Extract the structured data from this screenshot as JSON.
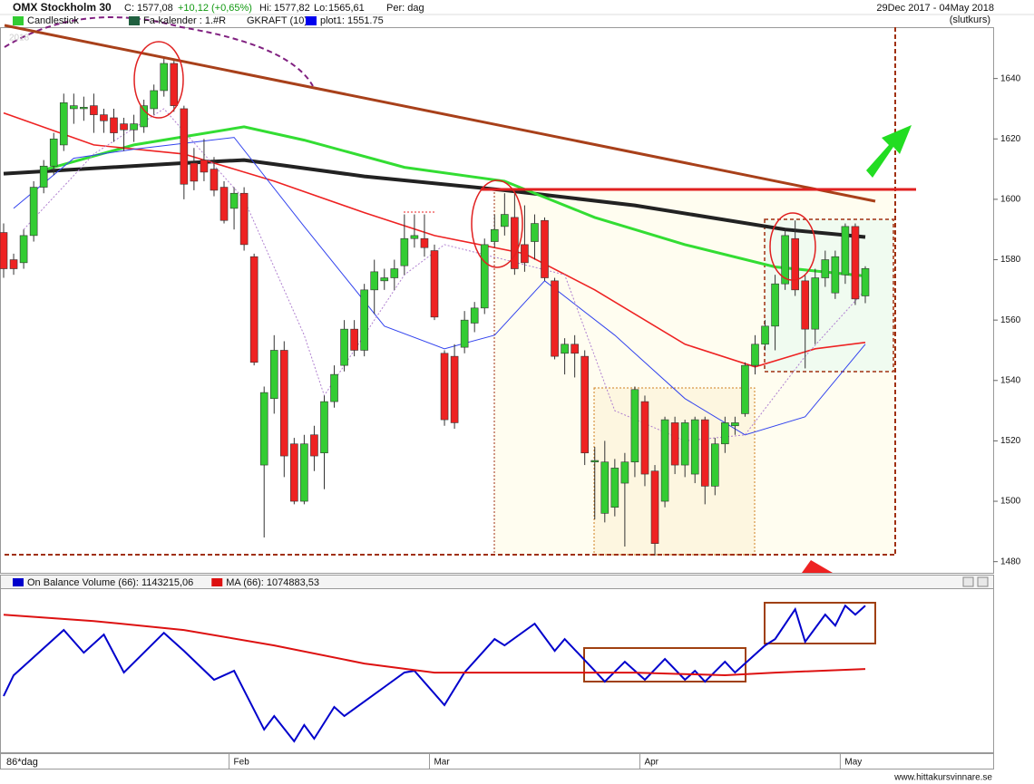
{
  "chart_data": [
    {
      "type": "candlestick",
      "title": "OMX Stockholm 30",
      "quote": [
        "C:",
        "1577,08",
        "+10,12 (+0,65%)",
        "Hi:",
        "1577,82",
        "Lo:",
        "1565,61",
        "Per: dag"
      ],
      "date_range": "29Dec 2017 - 04May 2018",
      "price_basis": "(slutkurs)",
      "year_watermark": "2018",
      "legend": [
        {
          "label": "Candlestick",
          "color": "#33cc33"
        },
        {
          "label": "Fa-kalender : 1.#R",
          "color": "#1f5f3f"
        },
        {
          "label": "GKRAFT (10)",
          "color": null
        },
        {
          "label": "plot1: 1551.75",
          "color": "#0000ee"
        }
      ],
      "period_label": "86*dag",
      "categories": [
        null,
        null,
        null,
        null,
        null,
        null,
        null,
        null,
        null,
        null,
        null,
        null,
        null,
        null,
        null,
        null,
        null,
        null,
        null,
        null,
        null,
        null,
        null,
        "Feb",
        null,
        null,
        null,
        null,
        null,
        null,
        null,
        null,
        null,
        null,
        null,
        null,
        null,
        null,
        null,
        null,
        null,
        null,
        null,
        "Mar",
        null,
        null,
        null,
        null,
        null,
        null,
        null,
        null,
        null,
        null,
        null,
        null,
        null,
        null,
        null,
        null,
        null,
        null,
        null,
        null,
        "Apr",
        null,
        null,
        null,
        null,
        null,
        null,
        null,
        null,
        null,
        null,
        null,
        null,
        null,
        null,
        null,
        null,
        null,
        null,
        null,
        "May",
        null,
        null
      ],
      "open": [
        1589,
        1580,
        1579,
        1588,
        1604,
        1611,
        1618,
        1630,
        1630,
        1631,
        1628,
        1627,
        1625,
        1623,
        1624,
        1630,
        1636,
        1645,
        1630,
        1612,
        1613,
        1610,
        1604,
        1597,
        1602,
        1581,
        1512,
        1534,
        1550,
        1519,
        1500,
        1522,
        1516,
        1533,
        1545,
        1557,
        1550,
        1570,
        1573,
        1574,
        1578,
        1587,
        1587,
        1583,
        1549,
        1548,
        1551,
        1559,
        1564,
        1586,
        1591,
        1594,
        1585,
        1586,
        1593,
        1573,
        1549,
        1552,
        1548,
        1513,
        1496,
        1498,
        1506,
        1513,
        1533,
        1510,
        1500,
        1526,
        1512,
        1509,
        1527,
        1505,
        1519,
        1525,
        1529,
        1545,
        1552,
        1558,
        1572,
        1587,
        1573,
        1557,
        1574,
        1569,
        1575,
        1591,
        1568
      ],
      "high": [
        1592,
        1582,
        1590,
        1606,
        1613,
        1622,
        1635,
        1635,
        1634,
        1635,
        1630,
        1630,
        1627,
        1628,
        1633,
        1638,
        1647,
        1646,
        1631,
        1617,
        1620,
        1614,
        1606,
        1604,
        1604,
        1582,
        1538,
        1555,
        1553,
        1521,
        1522,
        1525,
        1535,
        1545,
        1560,
        1560,
        1572,
        1580,
        1577,
        1580,
        1595,
        1595,
        1595,
        1585,
        1550,
        1552,
        1563,
        1566,
        1587,
        1595,
        1602,
        1602,
        1598,
        1595,
        1594,
        1574,
        1554,
        1555,
        1550,
        1518,
        1520,
        1514,
        1516,
        1538,
        1535,
        1512,
        1528,
        1528,
        1527,
        1528,
        1528,
        1521,
        1528,
        1528,
        1546,
        1555,
        1560,
        1575,
        1590,
        1593,
        1575,
        1577,
        1583,
        1583,
        1592,
        1592,
        1577.82
      ],
      "low": [
        1574,
        1575,
        1577,
        1586,
        1602,
        1608,
        1616,
        1625,
        1626,
        1622,
        1622,
        1619,
        1616,
        1619,
        1622,
        1628,
        1634,
        1629,
        1600,
        1603,
        1606,
        1601,
        1592,
        1590,
        1583,
        1545,
        1488,
        1529,
        1508,
        1499,
        1499,
        1510,
        1504,
        1531,
        1543,
        1548,
        1548,
        1562,
        1570,
        1570,
        1575,
        1584,
        1581,
        1560,
        1525,
        1524,
        1549,
        1556,
        1562,
        1584,
        1588,
        1575,
        1576,
        1580,
        1573,
        1547,
        1542,
        1541,
        1512,
        1494,
        1493,
        1495,
        1485,
        1508,
        1505,
        1482,
        1498,
        1509,
        1508,
        1506,
        1499,
        1502,
        1516,
        1522,
        1528,
        1542,
        1550,
        1550,
        1570,
        1568,
        1544,
        1552,
        1571,
        1567,
        1572,
        1565,
        1565.61
      ],
      "close": [
        1577,
        1577,
        1588,
        1604,
        1611,
        1620,
        1632,
        1631,
        1630.5,
        1628,
        1626,
        1622,
        1623,
        1625,
        1631,
        1636,
        1645,
        1631,
        1605,
        1606,
        1609,
        1603,
        1593,
        1602,
        1585,
        1546,
        1536,
        1550,
        1515,
        1500,
        1519,
        1515,
        1533,
        1542,
        1557,
        1550,
        1570,
        1576,
        1574,
        1577,
        1587,
        1588,
        1584,
        1561,
        1527,
        1526,
        1560,
        1564,
        1585,
        1590,
        1595,
        1577,
        1579,
        1592,
        1574,
        1548,
        1552,
        1549,
        1516,
        1513.5,
        1513,
        1511,
        1513,
        1537,
        1509,
        1486,
        1527,
        1512,
        1526,
        1527,
        1505,
        1519,
        1526,
        1526,
        1545,
        1552,
        1558,
        1572,
        1588,
        1570,
        1557,
        1574,
        1580,
        1581,
        1591,
        1567,
        1577.08
      ],
      "up_color": "#33cc33",
      "down_color": "#ee2222",
      "ylim": [
        1476,
        1657
      ],
      "yticks": [
        1480,
        1500,
        1520,
        1540,
        1560,
        1580,
        1600,
        1620,
        1640
      ],
      "series": [
        {
          "color": "#222222",
          "width": 4,
          "x": [
            0,
            18,
            24,
            36,
            50,
            63,
            78,
            86
          ],
          "values": [
            1608.5,
            1612,
            1613,
            1607.6,
            1603,
            1598,
            1590,
            1587.5
          ]
        },
        {
          "color": "#33dd33",
          "width": 3,
          "x": [
            4,
            13,
            24,
            30,
            40,
            50,
            59,
            68,
            77,
            86
          ],
          "values": [
            1609.7,
            1618,
            1624,
            1619.6,
            1610.6,
            1606,
            1594,
            1585,
            1577.6,
            1574.6
          ]
        },
        {
          "color": "#ee2222",
          "width": 1.6,
          "x": [
            0,
            9,
            18,
            27,
            36,
            43,
            52,
            59,
            68,
            75,
            81,
            86
          ],
          "values": [
            1628.6,
            1618,
            1615,
            1606,
            1595.6,
            1588,
            1582,
            1570,
            1552,
            1544.5,
            1550.5,
            1552.6
          ]
        },
        {
          "color": "#3344ee",
          "width": 1,
          "x": [
            1,
            7,
            13,
            23,
            30,
            38,
            44,
            49,
            54,
            61,
            68,
            74,
            80,
            86
          ],
          "values": [
            1597,
            1613.6,
            1616.6,
            1620.5,
            1591,
            1558,
            1550.5,
            1555,
            1573,
            1555,
            1534,
            1522,
            1528,
            1552
          ]
        },
        {
          "color": "#b080d0",
          "width": 1,
          "dash": "2 2",
          "x": [
            2,
            9,
            16,
            24,
            30,
            32,
            40,
            44,
            50,
            56,
            61,
            68,
            74,
            80,
            86
          ],
          "values": [
            1590,
            1615,
            1630,
            1600,
            1555,
            1535,
            1575,
            1585,
            1580,
            1575,
            1530,
            1520,
            1522,
            1548,
            1570
          ]
        }
      ]
    },
    {
      "type": "line",
      "ylim": [
        985000,
        1161000
      ],
      "series": [
        {
          "name": "On Balance Volume (66): 1143215,06",
          "color": "#0000cc",
          "x": [
            0,
            1,
            3,
            6,
            8,
            10,
            12,
            16,
            18,
            21,
            23,
            26,
            27,
            29,
            30,
            31,
            33,
            34,
            38,
            40,
            41,
            44,
            46,
            49,
            50,
            53,
            55,
            56,
            59,
            60,
            62,
            64,
            66,
            68,
            69,
            70,
            72,
            73,
            76,
            77,
            79,
            80,
            82,
            83,
            84,
            85,
            86
          ],
          "values": [
            1045600,
            1068000,
            1087600,
            1116900,
            1092500,
            1112000,
            1071000,
            1113900,
            1094400,
            1063200,
            1072900,
            1009500,
            1024100,
            996800,
            1014400,
            999700,
            1033900,
            1024100,
            1055400,
            1071000,
            1072900,
            1035900,
            1071000,
            1107100,
            1100300,
            1123700,
            1094400,
            1107100,
            1072900,
            1061200,
            1082700,
            1063200,
            1085600,
            1063200,
            1072900,
            1061200,
            1082700,
            1071000,
            1100300,
            1107100,
            1139300,
            1104200,
            1133500,
            1121700,
            1143200,
            1133500,
            1143215.06
          ]
        },
        {
          "name": "MA (66): 1074883,53",
          "color": "#dd1111",
          "x": [
            0,
            9,
            18,
            27,
            36,
            43,
            50,
            63,
            72,
            77,
            86
          ],
          "values": [
            1133455,
            1126623,
            1116863,
            1100271,
            1080751,
            1070991,
            1070991,
            1070991,
            1068063,
            1070991,
            1074883.53
          ]
        }
      ]
    }
  ],
  "footer": "www.hittakursvinnare.se"
}
